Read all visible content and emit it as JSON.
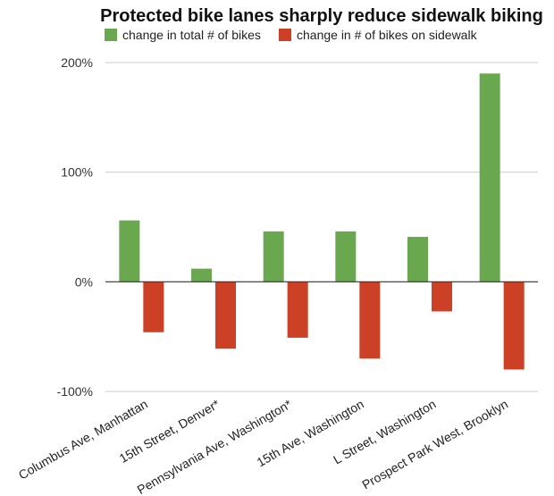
{
  "chart_data": {
    "type": "bar",
    "title": "Protected bike lanes sharply reduce sidewalk biking",
    "xlabel": "",
    "ylabel": "",
    "categories": [
      "Columbus Ave, Manhattan",
      "15th Street, Denver*",
      "Pennsylvania Ave, Washington*",
      "15th Ave, Washington",
      "L Street, Washington",
      "Prospect Park West, Brooklyn"
    ],
    "series": [
      {
        "name": "change in total # of bikes",
        "color": "#6aa84f",
        "values": [
          56,
          12,
          46,
          46,
          41,
          190
        ]
      },
      {
        "name": "change in # of bikes on sidewalk",
        "color": "#cc4125",
        "values": [
          -46,
          -61,
          -51,
          -70,
          -27,
          -80
        ]
      }
    ],
    "ylim": [
      -100,
      200
    ],
    "yticks": [
      200,
      100,
      0,
      -100
    ],
    "ytick_labels": [
      "200%",
      "100%",
      "0%",
      "-100%"
    ],
    "grid": true,
    "legend_position": "top-left"
  }
}
